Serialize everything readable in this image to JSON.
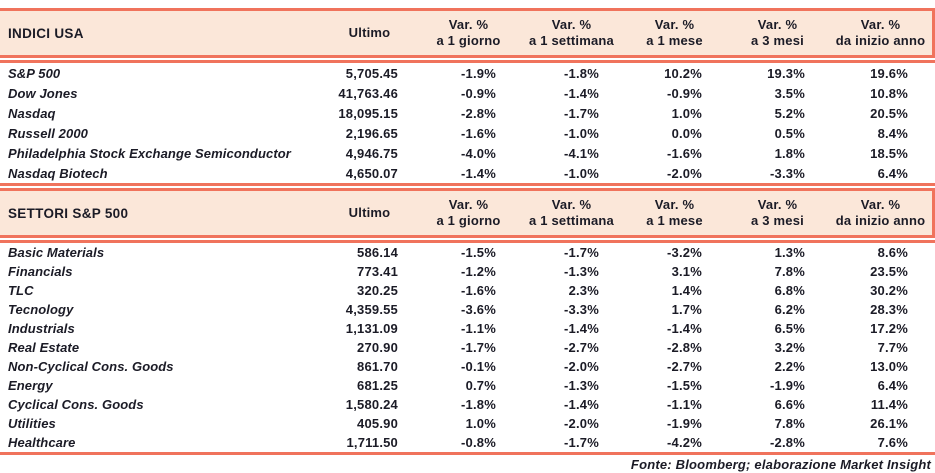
{
  "colors": {
    "accent": "#F0735C",
    "header_bg": "#FBE7D9",
    "text": "#1B1B26"
  },
  "header": {
    "ultimo_label": "Ultimo",
    "var_columns": [
      {
        "line1": "Var. %",
        "line2": "a 1 giorno"
      },
      {
        "line1": "Var. %",
        "line2": "a 1 settimana"
      },
      {
        "line1": "Var. %",
        "line2": "a 1 mese"
      },
      {
        "line1": "Var. %",
        "line2": "a 3 mesi"
      },
      {
        "line1": "Var. %",
        "line2": "da inizio anno"
      }
    ]
  },
  "tables": [
    {
      "title": "INDICI USA",
      "rows": [
        {
          "name": "S&P 500",
          "ultimo": "5,705.45",
          "vars": [
            "-1.9%",
            "-1.8%",
            "10.2%",
            "19.3%",
            "19.6%"
          ]
        },
        {
          "name": "Dow Jones",
          "ultimo": "41,763.46",
          "vars": [
            "-0.9%",
            "-1.4%",
            "-0.9%",
            "3.5%",
            "10.8%"
          ]
        },
        {
          "name": "Nasdaq",
          "ultimo": "18,095.15",
          "vars": [
            "-2.8%",
            "-1.7%",
            "1.0%",
            "5.2%",
            "20.5%"
          ]
        },
        {
          "name": "Russell 2000",
          "ultimo": "2,196.65",
          "vars": [
            "-1.6%",
            "-1.0%",
            "0.0%",
            "0.5%",
            "8.4%"
          ]
        },
        {
          "name": "Philadelphia Stock Exchange Semiconductor",
          "ultimo": "4,946.75",
          "vars": [
            "-4.0%",
            "-4.1%",
            "-1.6%",
            "1.8%",
            "18.5%"
          ]
        },
        {
          "name": "Nasdaq Biotech",
          "ultimo": "4,650.07",
          "vars": [
            "-1.4%",
            "-1.0%",
            "-2.0%",
            "-3.3%",
            "6.4%"
          ]
        }
      ]
    },
    {
      "title": "SETTORI S&P 500",
      "rows": [
        {
          "name": "Basic Materials",
          "ultimo": "586.14",
          "vars": [
            "-1.5%",
            "-1.7%",
            "-3.2%",
            "1.3%",
            "8.6%"
          ]
        },
        {
          "name": "Financials",
          "ultimo": "773.41",
          "vars": [
            "-1.2%",
            "-1.3%",
            "3.1%",
            "7.8%",
            "23.5%"
          ]
        },
        {
          "name": "TLC",
          "ultimo": "320.25",
          "vars": [
            "-1.6%",
            "2.3%",
            "1.4%",
            "6.8%",
            "30.2%"
          ]
        },
        {
          "name": "Tecnology",
          "ultimo": "4,359.55",
          "vars": [
            "-3.6%",
            "-3.3%",
            "1.7%",
            "6.2%",
            "28.3%"
          ]
        },
        {
          "name": "Industrials",
          "ultimo": "1,131.09",
          "vars": [
            "-1.1%",
            "-1.4%",
            "-1.4%",
            "6.5%",
            "17.2%"
          ]
        },
        {
          "name": "Real Estate",
          "ultimo": "270.90",
          "vars": [
            "-1.7%",
            "-2.7%",
            "-2.8%",
            "3.2%",
            "7.7%"
          ]
        },
        {
          "name": "Non-Cyclical Cons. Goods",
          "ultimo": "861.70",
          "vars": [
            "-0.1%",
            "-2.0%",
            "-2.7%",
            "2.2%",
            "13.0%"
          ]
        },
        {
          "name": "Energy",
          "ultimo": "681.25",
          "vars": [
            "0.7%",
            "-1.3%",
            "-1.5%",
            "-1.9%",
            "6.4%"
          ]
        },
        {
          "name": "Cyclical Cons. Goods",
          "ultimo": "1,580.24",
          "vars": [
            "-1.8%",
            "-1.4%",
            "-1.1%",
            "6.6%",
            "11.4%"
          ]
        },
        {
          "name": "Utilities",
          "ultimo": "405.90",
          "vars": [
            "1.0%",
            "-2.0%",
            "-1.9%",
            "7.8%",
            "26.1%"
          ]
        },
        {
          "name": "Healthcare",
          "ultimo": "1,711.50",
          "vars": [
            "-0.8%",
            "-1.7%",
            "-4.2%",
            "-2.8%",
            "7.6%"
          ]
        }
      ]
    }
  ],
  "footer": "Fonte: Bloomberg; elaborazione Market Insight"
}
